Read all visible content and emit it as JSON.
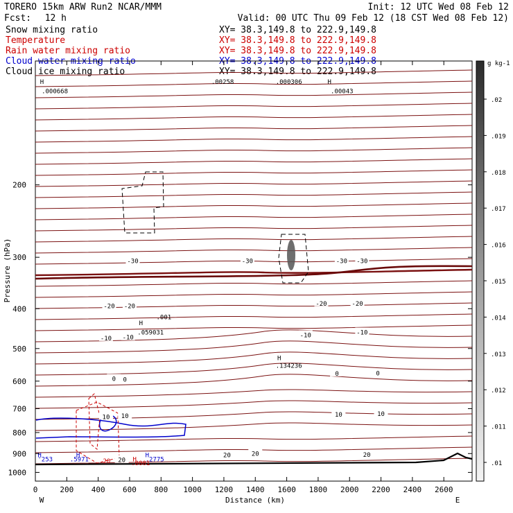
{
  "header": {
    "title": "TORERO  15km ARW   Run2     NCAR/MMM",
    "init": "Init: 12 UTC Wed 08 Feb 12",
    "fcst_label": "Fcst:",
    "fcst_value": "12 h",
    "valid": "Valid: 00 UTC Thu 09 Feb 12 (18 CST Wed 08 Feb 12)"
  },
  "legend": [
    {
      "name": "Snow mixing ratio",
      "color": "#000000",
      "xy": "XY=  38.3,149.8 to 222.9,149.8"
    },
    {
      "name": "Temperature",
      "color": "#cc0000",
      "xy": "XY=  38.3,149.8 to 222.9,149.8"
    },
    {
      "name": "Rain water mixing ratio",
      "color": "#cc0000",
      "xy": "XY=  38.3,149.8 to 222.9,149.8"
    },
    {
      "name": "Cloud water mixing ratio",
      "color": "#0000cc",
      "xy": "XY=  38.3,149.8 to 222.9,149.8"
    },
    {
      "name": "Cloud ice mixing ratio",
      "color": "#000000",
      "xy": "XY=  38.3,149.8 to 222.9,149.8"
    }
  ],
  "chart_data": {
    "type": "cross-section",
    "xlabel": "Distance (km)",
    "ylabel": "Pressure (hPa)",
    "xlim": [
      0,
      2780
    ],
    "ylim": [
      1050,
      100
    ],
    "y_log": true,
    "x_ticks": [
      "0",
      "200",
      "400",
      "600",
      "800",
      "1000",
      "1200",
      "1400",
      "1600",
      "1800",
      "2000",
      "2200",
      "2400",
      "2600"
    ],
    "y_ticks": [
      "200",
      "300",
      "400",
      "500",
      "600",
      "700",
      "800",
      "900",
      "1000"
    ],
    "x_end_labels": {
      "left": "W",
      "right": "E"
    },
    "colorbar": {
      "units": "g kg-1",
      "labels": [
        ".02",
        ".019",
        ".018",
        ".017",
        ".016",
        ".015",
        ".014",
        ".013",
        ".012",
        ".011",
        ".01"
      ]
    },
    "temperature_labels": [
      {
        "text": "-30",
        "x": 620,
        "p": 305
      },
      {
        "text": "-30",
        "x": 1350,
        "p": 305
      },
      {
        "text": "-30",
        "x": 1950,
        "p": 305
      },
      {
        "text": "-30",
        "x": 2080,
        "p": 305
      },
      {
        "text": "-20",
        "x": 470,
        "p": 393
      },
      {
        "text": "-20",
        "x": 600,
        "p": 393
      },
      {
        "text": "-20",
        "x": 1820,
        "p": 387
      },
      {
        "text": "-20",
        "x": 2050,
        "p": 387
      },
      {
        "text": "-10",
        "x": 450,
        "p": 470
      },
      {
        "text": "-10",
        "x": 590,
        "p": 468
      },
      {
        "text": "-10",
        "x": 1720,
        "p": 462
      },
      {
        "text": "-10",
        "x": 2080,
        "p": 455
      },
      {
        "text": "0",
        "x": 500,
        "p": 590
      },
      {
        "text": "0",
        "x": 570,
        "p": 592
      },
      {
        "text": "0",
        "x": 1920,
        "p": 573
      },
      {
        "text": "0",
        "x": 2180,
        "p": 572
      },
      {
        "text": "10",
        "x": 450,
        "p": 730
      },
      {
        "text": "10",
        "x": 570,
        "p": 726
      },
      {
        "text": "10",
        "x": 1930,
        "p": 720
      },
      {
        "text": "10",
        "x": 2200,
        "p": 718
      },
      {
        "text": "20",
        "x": 1220,
        "p": 905
      },
      {
        "text": "20",
        "x": 1400,
        "p": 898
      },
      {
        "text": "20",
        "x": 2110,
        "p": 903
      },
      {
        "text": "20",
        "x": 550,
        "p": 930
      }
    ],
    "extrema_labels": [
      {
        "text": "H",
        "x": 30,
        "p": 112,
        "color": "#000000"
      },
      {
        "text": ".000668",
        "x": 40,
        "p": 118,
        "color": "#000000"
      },
      {
        "text": ".00258",
        "x": 1120,
        "p": 112,
        "color": "#000000"
      },
      {
        "text": ".000306",
        "x": 1530,
        "p": 112,
        "color": "#000000"
      },
      {
        "text": "H",
        "x": 1860,
        "p": 112,
        "color": "#000000"
      },
      {
        "text": ".00043",
        "x": 1880,
        "p": 118,
        "color": "#000000"
      },
      {
        "text": "H",
        "x": 660,
        "p": 432,
        "color": "#000000"
      },
      {
        "text": ".059031",
        "x": 650,
        "p": 455,
        "color": "#000000"
      },
      {
        "text": ".001",
        "x": 770,
        "p": 418,
        "color": "#000000"
      },
      {
        "text": "H",
        "x": 1540,
        "p": 525,
        "color": "#000000"
      },
      {
        "text": ".134236",
        "x": 1530,
        "p": 548,
        "color": "#000000"
      },
      {
        "text": "H",
        "x": 15,
        "p": 905,
        "color": "#0000cc"
      },
      {
        "text": "H",
        "x": 260,
        "p": 905,
        "color": "#0000cc"
      },
      {
        "text": ".5971",
        "x": 220,
        "p": 925,
        "color": "#0000cc"
      },
      {
        "text": "H",
        "x": 700,
        "p": 905,
        "color": "#0000cc"
      },
      {
        "text": ".2775",
        "x": 700,
        "p": 925,
        "color": "#0000cc"
      },
      {
        "text": "H",
        "x": 620,
        "p": 925,
        "color": "#cc0000"
      },
      {
        "text": ".0001",
        "x": 610,
        "p": 945,
        "color": "#cc0000"
      },
      {
        "text": "'253",
        "x": 15,
        "p": 925,
        "color": "#0000cc"
      },
      {
        "text": "20",
        "x": 430,
        "p": 935,
        "color": "#cc0000"
      }
    ]
  }
}
